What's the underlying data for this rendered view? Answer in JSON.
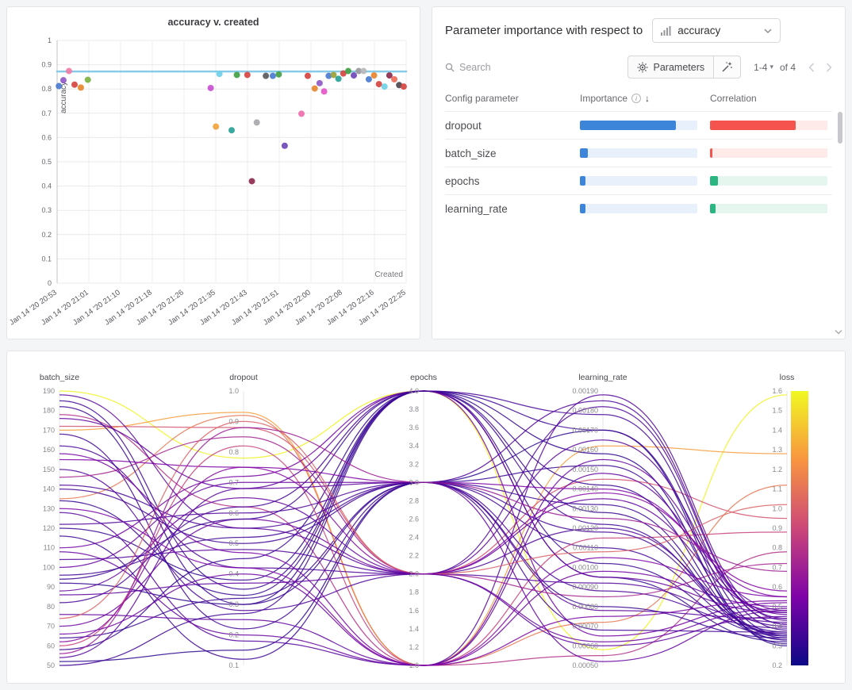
{
  "icons": {
    "range_caret": "▾",
    "sort": "↓",
    "info": "i"
  },
  "importance_panel": {
    "header_text": "Parameter importance with respect to",
    "metric_dropdown": {
      "value": "accuracy"
    },
    "search": {
      "placeholder": "Search"
    },
    "parameters_label": "Parameters",
    "pagination": {
      "range": "1-4",
      "of": "of 4"
    },
    "table": {
      "columns": [
        "Config parameter",
        "Importance",
        "Correlation"
      ],
      "importance_color": "#3d85d8",
      "importance_track": "#e8f1fb",
      "rows": [
        {
          "name": "dropout",
          "importance": 0.82,
          "correlation": 0.73,
          "corr_color": "#f4534e",
          "corr_track": "#fdeae9"
        },
        {
          "name": "batch_size",
          "importance": 0.065,
          "correlation": 0.018,
          "corr_color": "#f4534e",
          "corr_track": "#fdeae9"
        },
        {
          "name": "epochs",
          "importance": 0.05,
          "correlation": 0.07,
          "corr_color": "#2bb581",
          "corr_track": "#e4f6ee"
        },
        {
          "name": "learning_rate",
          "importance": 0.05,
          "correlation": 0.05,
          "corr_color": "#2bb581",
          "corr_track": "#e4f6ee"
        }
      ]
    }
  },
  "chart_data": [
    {
      "type": "scatter",
      "title": "accuracy v. created",
      "xlabel": "Created",
      "ylabel": "accuracy",
      "ylim": [
        0,
        1
      ],
      "grid": true,
      "y_ticks": [
        "1",
        "0.9",
        "0.8",
        "0.7",
        "0.6",
        "0.5",
        "0.4",
        "0.3",
        "0.2",
        "0.1",
        "0"
      ],
      "x_tick_labels": [
        "Jan 14 '20 20:53",
        "Jan 14 '20 21:01",
        "Jan 14 '20 21:10",
        "Jan 14 '20 21:18",
        "Jan 14 '20 21:26",
        "Jan 14 '20 21:35",
        "Jan 14 '20 21:43",
        "Jan 14 '20 21:51",
        "Jan 14 '20 22:00",
        "Jan 14 '20 22:08",
        "Jan 14 '20 22:16",
        "Jan 14 '20 22:25"
      ],
      "ref_line": {
        "y": 0.872,
        "color": "#7cc6e6"
      },
      "points": [
        [
          0.005,
          0.812,
          "#4a7bd0"
        ],
        [
          0.018,
          0.836,
          "#9059c8"
        ],
        [
          0.034,
          0.874,
          "#f07da8"
        ],
        [
          0.05,
          0.818,
          "#d64541"
        ],
        [
          0.068,
          0.806,
          "#e8852e"
        ],
        [
          0.088,
          0.838,
          "#7cb342"
        ],
        [
          0.44,
          0.804,
          "#c84fd0"
        ],
        [
          0.455,
          0.645,
          "#f2a33c"
        ],
        [
          0.465,
          0.862,
          "#6fd0e8"
        ],
        [
          0.5,
          0.63,
          "#2aa198"
        ],
        [
          0.515,
          0.858,
          "#43a047"
        ],
        [
          0.545,
          0.858,
          "#d64541"
        ],
        [
          0.558,
          0.42,
          "#8e2a4e"
        ],
        [
          0.572,
          0.662,
          "#a8a8ac"
        ],
        [
          0.598,
          0.854,
          "#5a5a5e"
        ],
        [
          0.618,
          0.854,
          "#4a7bd0"
        ],
        [
          0.635,
          0.86,
          "#43a047"
        ],
        [
          0.652,
          0.566,
          "#7048b8"
        ],
        [
          0.7,
          0.698,
          "#f06cab"
        ],
        [
          0.718,
          0.854,
          "#d64541"
        ],
        [
          0.738,
          0.802,
          "#e8852e"
        ],
        [
          0.752,
          0.824,
          "#9059c8"
        ],
        [
          0.765,
          0.79,
          "#e455c8"
        ],
        [
          0.778,
          0.854,
          "#4a7bd0"
        ],
        [
          0.792,
          0.858,
          "#9aa03a"
        ],
        [
          0.806,
          0.842,
          "#2aa198"
        ],
        [
          0.82,
          0.864,
          "#d64541"
        ],
        [
          0.834,
          0.874,
          "#43a047"
        ],
        [
          0.85,
          0.856,
          "#7048b8"
        ],
        [
          0.864,
          0.874,
          "#9a9a9e"
        ],
        [
          0.878,
          0.874,
          "#b8b8bc"
        ],
        [
          0.893,
          0.84,
          "#4a7bd0"
        ],
        [
          0.908,
          0.856,
          "#e8852e"
        ],
        [
          0.922,
          0.82,
          "#d64541"
        ],
        [
          0.938,
          0.81,
          "#6fd0e8"
        ],
        [
          0.952,
          0.856,
          "#8e2a4e"
        ],
        [
          0.966,
          0.84,
          "#ef6a5a"
        ],
        [
          0.98,
          0.816,
          "#4a4a4e"
        ],
        [
          0.993,
          0.81,
          "#d64541"
        ]
      ]
    },
    {
      "type": "parallel_coordinates",
      "colormap": [
        [
          0,
          "#0d0887"
        ],
        [
          0.25,
          "#7e03a8"
        ],
        [
          0.5,
          "#cc4778"
        ],
        [
          0.75,
          "#f89540"
        ],
        [
          1,
          "#f0f921"
        ]
      ],
      "axes": [
        {
          "name": "batch_size",
          "min": 50,
          "max": 190,
          "ticks": [
            "190",
            "180",
            "170",
            "160",
            "150",
            "140",
            "130",
            "120",
            "110",
            "100",
            "90",
            "80",
            "70",
            "60",
            "50"
          ]
        },
        {
          "name": "dropout",
          "min": 0.1,
          "max": 1.0,
          "ticks": [
            "1.0",
            "0.9",
            "0.8",
            "0.7",
            "0.6",
            "0.5",
            "0.4",
            "0.3",
            "0.2",
            "0.1"
          ]
        },
        {
          "name": "epochs",
          "min": 1.0,
          "max": 4.0,
          "ticks": [
            "4.0",
            "3.8",
            "3.6",
            "3.4",
            "3.2",
            "3.0",
            "2.8",
            "2.6",
            "2.4",
            "2.2",
            "2.0",
            "1.8",
            "1.6",
            "1.4",
            "1.2",
            "1.0"
          ]
        },
        {
          "name": "learning_rate",
          "min": 0.0005,
          "max": 0.0019,
          "ticks": [
            "0.00190",
            "0.00180",
            "0.00170",
            "0.00160",
            "0.00150",
            "0.00140",
            "0.00130",
            "0.00120",
            "0.00110",
            "0.00100",
            "0.00090",
            "0.00080",
            "0.00070",
            "0.00060",
            "0.00050"
          ]
        },
        {
          "name": "loss",
          "min": 0.2,
          "max": 1.6,
          "colorbar": true,
          "ticks": [
            "1.6",
            "1.5",
            "1.4",
            "1.3",
            "1.2",
            "1.1",
            "1.0",
            "0.9",
            "0.8",
            "0.7",
            "0.6",
            "0.5",
            "0.4",
            "0.3",
            "0.2"
          ]
        }
      ],
      "runs": [
        [
          64,
          0.32,
          3,
          0.00152,
          0.34
        ],
        [
          190,
          0.78,
          4,
          0.00058,
          1.58
        ],
        [
          170,
          0.93,
          1,
          0.00162,
          1.28
        ],
        [
          172,
          0.88,
          2,
          0.00145,
          0.95
        ],
        [
          135,
          0.92,
          1,
          0.00072,
          1.12
        ],
        [
          178,
          0.62,
          1,
          0.00055,
          0.78
        ],
        [
          52,
          0.15,
          3,
          0.0017,
          0.3
        ],
        [
          58,
          0.45,
          4,
          0.00128,
          0.33
        ],
        [
          150,
          0.28,
          2,
          0.00182,
          0.41
        ],
        [
          96,
          0.52,
          3,
          0.0011,
          0.36
        ],
        [
          120,
          0.38,
          4,
          0.00095,
          0.32
        ],
        [
          88,
          0.65,
          2,
          0.00135,
          0.47
        ],
        [
          142,
          0.55,
          3,
          0.00088,
          0.39
        ],
        [
          110,
          0.72,
          4,
          0.00065,
          0.52
        ],
        [
          76,
          0.25,
          1,
          0.00148,
          0.46
        ],
        [
          162,
          0.42,
          2,
          0.0012,
          0.4
        ],
        [
          54,
          0.68,
          3,
          0.00078,
          0.44
        ],
        [
          185,
          0.35,
          4,
          0.00102,
          0.35
        ],
        [
          128,
          0.18,
          1,
          0.00188,
          0.43
        ],
        [
          70,
          0.58,
          2,
          0.00062,
          0.49
        ],
        [
          155,
          0.75,
          3,
          0.0014,
          0.55
        ],
        [
          92,
          0.3,
          4,
          0.00158,
          0.31
        ],
        [
          60,
          0.82,
          1,
          0.00115,
          0.88
        ],
        [
          104,
          0.48,
          2,
          0.00092,
          0.42
        ],
        [
          168,
          0.22,
          3,
          0.00068,
          0.37
        ],
        [
          82,
          0.62,
          4,
          0.00178,
          0.38
        ],
        [
          146,
          0.85,
          2,
          0.00085,
          0.72
        ],
        [
          116,
          0.12,
          3,
          0.00132,
          0.35
        ],
        [
          66,
          0.4,
          1,
          0.00098,
          0.5
        ],
        [
          188,
          0.55,
          2,
          0.00165,
          0.44
        ],
        [
          100,
          0.7,
          3,
          0.00052,
          0.48
        ],
        [
          134,
          0.33,
          4,
          0.00142,
          0.33
        ],
        [
          74,
          0.9,
          2,
          0.00108,
          1.02
        ],
        [
          158,
          0.47,
          1,
          0.00075,
          0.53
        ],
        [
          50,
          0.27,
          4,
          0.00122,
          0.36
        ],
        [
          122,
          0.6,
          3,
          0.00185,
          0.41
        ],
        [
          86,
          0.37,
          2,
          0.0006,
          0.45
        ],
        [
          176,
          0.68,
          4,
          0.00095,
          0.47
        ],
        [
          108,
          0.2,
          1,
          0.00155,
          0.48
        ],
        [
          140,
          0.5,
          3,
          0.00118,
          0.37
        ],
        [
          62,
          0.75,
          2,
          0.00138,
          0.58
        ],
        [
          182,
          0.3,
          3,
          0.0008,
          0.34
        ],
        [
          94,
          0.58,
          4,
          0.0017,
          0.35
        ],
        [
          130,
          0.42,
          1,
          0.00105,
          0.55
        ],
        [
          56,
          0.88,
          3,
          0.00125,
          0.68
        ]
      ]
    }
  ]
}
